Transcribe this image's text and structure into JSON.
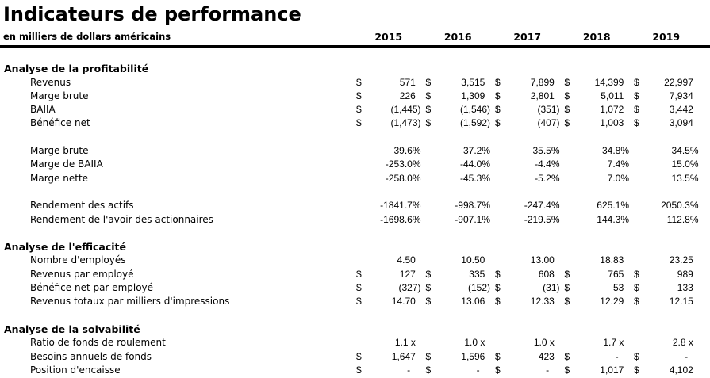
{
  "header": {
    "title": "Indicateurs de performance",
    "subtitle": "en milliers de dollars américains",
    "years": [
      "2015",
      "2016",
      "2017",
      "2018",
      "2019"
    ]
  },
  "sections": [
    {
      "heading": "Analyse de la profitabilité",
      "groups": [
        {
          "rows": [
            {
              "label": "Revenus",
              "prefix": "$",
              "values": [
                "571  ",
                "3,515  ",
                "7,899  ",
                "14,399  ",
                "22,997  "
              ]
            },
            {
              "label": "Marge brute",
              "prefix": "$",
              "values": [
                "226  ",
                "1,309  ",
                "2,801  ",
                "5,011  ",
                "7,934  "
              ]
            },
            {
              "label": "BAIIA",
              "prefix": "$",
              "values": [
                "(1,445)",
                "(1,546)",
                "(351)",
                "1,072  ",
                "3,442  "
              ]
            },
            {
              "label": "Bénéfice net",
              "prefix": "$",
              "values": [
                "(1,473)",
                "(1,592)",
                "(407)",
                "1,003  ",
                "3,094  "
              ]
            }
          ]
        },
        {
          "rows": [
            {
              "label": "Marge brute",
              "prefix": "",
              "values": [
                "39.6%",
                "37.2%",
                "35.5%",
                "34.8%",
                "34.5%"
              ]
            },
            {
              "label": "Marge de BAIIA",
              "prefix": "",
              "values": [
                "-253.0%",
                "-44.0%",
                "-4.4%",
                "7.4%",
                "15.0%"
              ]
            },
            {
              "label": "Marge nette",
              "prefix": "",
              "values": [
                "-258.0%",
                "-45.3%",
                "-5.2%",
                "7.0%",
                "13.5%"
              ]
            }
          ]
        },
        {
          "rows": [
            {
              "label": "Rendement des actifs",
              "prefix": "",
              "values": [
                "-1841.7%",
                "-998.7%",
                "-247.4%",
                "625.1%",
                "2050.3%"
              ]
            },
            {
              "label": "Rendement de l'avoir des actionnaires",
              "prefix": "",
              "values": [
                "-1698.6%",
                "-907.1%",
                "-219.5%",
                "144.3%",
                "112.8%"
              ]
            }
          ]
        }
      ]
    },
    {
      "heading": "Analyse de l'efficacité",
      "groups": [
        {
          "rows": [
            {
              "label": "Nombre d'employés",
              "prefix": "",
              "values": [
                "4.50  ",
                "10.50  ",
                "13.00  ",
                "18.83  ",
                "23.25  "
              ]
            },
            {
              "label": "Revenus par employé",
              "prefix": "$",
              "values": [
                "127  ",
                "335  ",
                "608  ",
                "765  ",
                "989  "
              ]
            },
            {
              "label": "Bénéfice net par employé",
              "prefix": "$",
              "values": [
                "(327)",
                "(152)",
                "(31)",
                "53  ",
                "133  "
              ]
            },
            {
              "label": "Revenus totaux par milliers d'impressions",
              "prefix": "$",
              "values": [
                "14.70  ",
                "13.06  ",
                "12.33  ",
                "12.29  ",
                "12.15  "
              ]
            }
          ]
        }
      ]
    },
    {
      "heading": "Analyse de la solvabilité",
      "groups": [
        {
          "rows": [
            {
              "label": "Ratio de fonds de roulement",
              "prefix": "",
              "values": [
                "1.1 x  ",
                "1.0 x  ",
                "1.0 x  ",
                "1.7 x  ",
                "2.8 x  "
              ]
            },
            {
              "label": "Besoins annuels de fonds",
              "prefix": "$",
              "values": [
                "1,647  ",
                "1,596  ",
                "423  ",
                "-    ",
                "-    "
              ]
            },
            {
              "label": "Position d'encaisse",
              "prefix": "$",
              "values": [
                "-    ",
                "-    ",
                "-    ",
                "1,017  ",
                "4,102  "
              ]
            }
          ]
        }
      ]
    }
  ]
}
